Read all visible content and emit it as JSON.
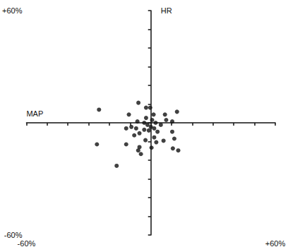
{
  "chart_data": {
    "type": "scatter",
    "x_label": "MAP",
    "y_label": "HR",
    "x": [
      -25,
      -26,
      -16.5,
      -6,
      -10.6,
      -2.3,
      -0.3,
      1.3,
      6.8,
      12.6,
      10.3,
      10.3,
      11.3,
      13.2,
      10.6,
      6.1,
      1.6,
      0.3,
      -5.5,
      -4.8,
      -6.1,
      -11.9,
      -11.9,
      -9.4,
      -7.1,
      -5.5,
      -3.2,
      -1.6,
      0,
      1.6,
      3.2,
      4.8,
      7.4,
      2.3,
      -2.3,
      -3.2,
      -6.5,
      -1,
      2.6,
      -2.6,
      0.6,
      -8
    ],
    "values": [
      7,
      -11.5,
      -23,
      10.7,
      4.4,
      8.1,
      8.1,
      4.4,
      4.4,
      5.9,
      0.7,
      -4.8,
      -8.5,
      -14.8,
      -13.7,
      -9.6,
      -7.8,
      -13.3,
      -13,
      -16.7,
      -14.8,
      -11.5,
      -3,
      -2.2,
      -3,
      -5.6,
      -3.7,
      -1.1,
      -2.2,
      -3,
      -4.8,
      -1.1,
      1.5,
      0,
      2.6,
      0,
      0.7,
      -4.1,
      -10.4,
      -9.3,
      1.5,
      -6.7
    ],
    "color": "#111111",
    "marker": "circle",
    "xlim": [
      -60,
      60
    ],
    "ylim": [
      -60,
      60
    ],
    "xticks": [
      {
        "value": -60,
        "label": "-60%"
      },
      {
        "value": -50,
        "label": null
      },
      {
        "value": -40,
        "label": null
      },
      {
        "value": -30,
        "label": null
      },
      {
        "value": -20,
        "label": null
      },
      {
        "value": -10,
        "label": null
      },
      {
        "value": 0,
        "label": null
      },
      {
        "value": 10,
        "label": null
      },
      {
        "value": 20,
        "label": null
      },
      {
        "value": 30,
        "label": null
      },
      {
        "value": 40,
        "label": null
      },
      {
        "value": 50,
        "label": null
      },
      {
        "value": 60,
        "label": "+60%"
      }
    ],
    "yticks": [
      {
        "value": -60,
        "label": "-60%"
      },
      {
        "value": -50,
        "label": null
      },
      {
        "value": -40,
        "label": null
      },
      {
        "value": -30,
        "label": null
      },
      {
        "value": -20,
        "label": null
      },
      {
        "value": -10,
        "label": null
      },
      {
        "value": 0,
        "label": null
      },
      {
        "value": 10,
        "label": null
      },
      {
        "value": 20,
        "label": null
      },
      {
        "value": 30,
        "label": null
      },
      {
        "value": 40,
        "label": null
      },
      {
        "value": 50,
        "label": null
      },
      {
        "value": 60,
        "label": "+60%"
      }
    ],
    "grid": false
  }
}
